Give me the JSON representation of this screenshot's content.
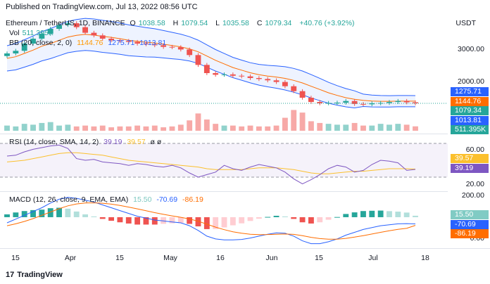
{
  "caption": "Published on TradingView.com, Jul 13, 2022 08:56 UTC",
  "currency": "USDT",
  "main_legend": {
    "symbol": "Ethereum / TetherUS, 1D, BINANCE",
    "o_label": "O",
    "o": "1038.58",
    "h_label": "H",
    "h": "1079.54",
    "l_label": "L",
    "l": "1035.58",
    "c_label": "C",
    "c": "1079.34",
    "change": "+40.76 (+3.92%)"
  },
  "vol_legend": {
    "label": "Vol",
    "value": "511.395K"
  },
  "bb_legend": {
    "label": "BB (20, close, 2, 0)",
    "basis": "1144.76",
    "upper": "1275.71",
    "lower": "1013.81"
  },
  "rsi_legend": {
    "label": "RSI (14, close, SMA, 14, 2)",
    "rsi": "39.19",
    "sma": "39.57",
    "extra": "ø ø"
  },
  "macd_legend": {
    "label": "MACD (12, 26, close, 9, EMA, EMA)",
    "hist": "15.50",
    "macd": "-70.69",
    "signal": "-86.19"
  },
  "price_scale": [
    "3000.00",
    "2000.00"
  ],
  "rsi_scale": [
    "60.00",
    "20.00"
  ],
  "macd_scale": [
    "200.00",
    "0.00"
  ],
  "badges": {
    "bb_upper": {
      "text": "1275.71",
      "color": "#2962ff"
    },
    "bb_basis": {
      "text": "1144.76",
      "color": "#ff6d00"
    },
    "close": {
      "text": "1079.34",
      "color": "#26a69a"
    },
    "bb_lower": {
      "text": "1013.81",
      "color": "#2962ff"
    },
    "volume": {
      "text": "511.395K",
      "color": "#26a69a"
    },
    "rsi_sma": {
      "text": "39.57",
      "color": "#fbc02d"
    },
    "rsi": {
      "text": "39.19",
      "color": "#7e57c2"
    },
    "macd_hist": {
      "text": "15.50",
      "color": "#80cbc4"
    },
    "macd": {
      "text": "-70.69",
      "color": "#2962ff"
    },
    "macd_signal": {
      "text": "-86.19",
      "color": "#ff6d00"
    }
  },
  "x_ticks": [
    "15",
    "Apr",
    "15",
    "May",
    "16",
    "Jun",
    "15",
    "Jul",
    "18"
  ],
  "footer": {
    "brand": "TradingView"
  },
  "colors": {
    "up": "#26a69a",
    "down": "#ef5350",
    "bb_fill": "#2962ff",
    "rsi_band": "#7e57c2"
  },
  "chart_data": {
    "type": "line",
    "title": "",
    "series": [
      {
        "name": "Close",
        "values": [
          2600,
          2680,
          2900,
          3050,
          3200,
          3350,
          3470,
          3520,
          3400,
          3230,
          3150,
          3050,
          3000,
          2980,
          2950,
          2900,
          2880,
          2850,
          2800,
          2790,
          2720,
          2550,
          2250,
          2000,
          1950,
          1960,
          1920,
          1900,
          1850,
          1820,
          1780,
          1730,
          1600,
          1450,
          1250,
          1120,
          1080,
          1090,
          1100,
          1150,
          1060,
          1050,
          1080,
          1090,
          1120,
          1150,
          1110,
          1079
        ]
      },
      {
        "name": "BB basis",
        "values": [
          2450,
          2500,
          2600,
          2700,
          2820,
          2900,
          3000,
          3100,
          3150,
          3180,
          3160,
          3120,
          3090,
          3050,
          3000,
          2970,
          2940,
          2920,
          2880,
          2840,
          2800,
          2740,
          2650,
          2520,
          2390,
          2280,
          2170,
          2090,
          2010,
          1950,
          1910,
          1880,
          1840,
          1780,
          1700,
          1600,
          1500,
          1400,
          1320,
          1250,
          1200,
          1170,
          1150,
          1140,
          1140,
          1145,
          1145,
          1144.76
        ]
      },
      {
        "name": "Volume",
        "values": [
          0.6,
          0.5,
          0.8,
          0.7,
          0.9,
          1.0,
          0.6,
          0.7,
          0.5,
          0.6,
          0.5,
          0.6,
          0.4,
          0.5,
          0.5,
          0.6,
          0.5,
          0.6,
          0.4,
          0.5,
          0.7,
          1.2,
          2.0,
          1.3,
          0.8,
          0.6,
          0.6,
          0.5,
          0.6,
          0.5,
          0.5,
          0.6,
          1.5,
          2.4,
          2.1,
          1.1,
          0.9,
          0.8,
          0.7,
          0.7,
          0.9,
          0.6,
          0.6,
          0.8,
          0.7,
          0.8,
          0.7,
          0.51
        ]
      },
      {
        "name": "RSI",
        "values": [
          55,
          56,
          60,
          63,
          65,
          67,
          68,
          64,
          52,
          50,
          51,
          48,
          47,
          46,
          44,
          46,
          45,
          43,
          42,
          44,
          41,
          35,
          30,
          33,
          36,
          44,
          40,
          38,
          42,
          45,
          43,
          41,
          36,
          28,
          22,
          27,
          33,
          40,
          44,
          42,
          36,
          38,
          45,
          50,
          49,
          47,
          38,
          39.19
        ]
      },
      {
        "name": "RSI SMA",
        "values": [
          48,
          49,
          50,
          52,
          54,
          56,
          58,
          59,
          59,
          58,
          57,
          56,
          54,
          52,
          50,
          49,
          48,
          47,
          46,
          45,
          44,
          43,
          42,
          40,
          39,
          39,
          39,
          39,
          40,
          41,
          41,
          41,
          40,
          39,
          37,
          35,
          34,
          34,
          35,
          36,
          37,
          37,
          38,
          39,
          40,
          40,
          40,
          39.57
        ]
      },
      {
        "name": "MACD",
        "values": [
          -60,
          -20,
          20,
          60,
          100,
          150,
          190,
          210,
          200,
          180,
          160,
          130,
          100,
          70,
          40,
          10,
          -10,
          -30,
          -40,
          -50,
          -60,
          -90,
          -140,
          -200,
          -230,
          -240,
          -240,
          -235,
          -220,
          -200,
          -180,
          -165,
          -170,
          -200,
          -250,
          -280,
          -280,
          -260,
          -230,
          -190,
          -160,
          -130,
          -110,
          -90,
          -80,
          -70,
          -68,
          -70.69
        ]
      },
      {
        "name": "MACD signal",
        "values": [
          -90,
          -70,
          -45,
          -15,
          20,
          55,
          90,
          120,
          140,
          150,
          152,
          148,
          138,
          124,
          107,
          88,
          68,
          48,
          30,
          14,
          -1,
          -19,
          -43,
          -74,
          -105,
          -132,
          -154,
          -170,
          -180,
          -184,
          -183,
          -180,
          -178,
          -182,
          -196,
          -213,
          -226,
          -233,
          -232,
          -224,
          -211,
          -195,
          -178,
          -160,
          -144,
          -129,
          -117,
          -86.19
        ]
      },
      {
        "name": "MACD histogram",
        "values": [
          30,
          50,
          65,
          75,
          80,
          95,
          100,
          90,
          60,
          30,
          8,
          -18,
          -38,
          -54,
          -67,
          -78,
          -78,
          -78,
          -70,
          -64,
          -59,
          -71,
          -97,
          -126,
          -125,
          -108,
          -86,
          -65,
          -40,
          -16,
          3,
          15,
          8,
          -18,
          -54,
          -67,
          -54,
          -27,
          2,
          34,
          51,
          65,
          68,
          70,
          64,
          59,
          49,
          15.5
        ]
      }
    ],
    "x_start": "2022-03-01",
    "price_ylim": [
      800,
      3800
    ],
    "rsi_ylim": [
      15,
      80
    ],
    "macd_ylim": [
      -320,
      260
    ]
  }
}
